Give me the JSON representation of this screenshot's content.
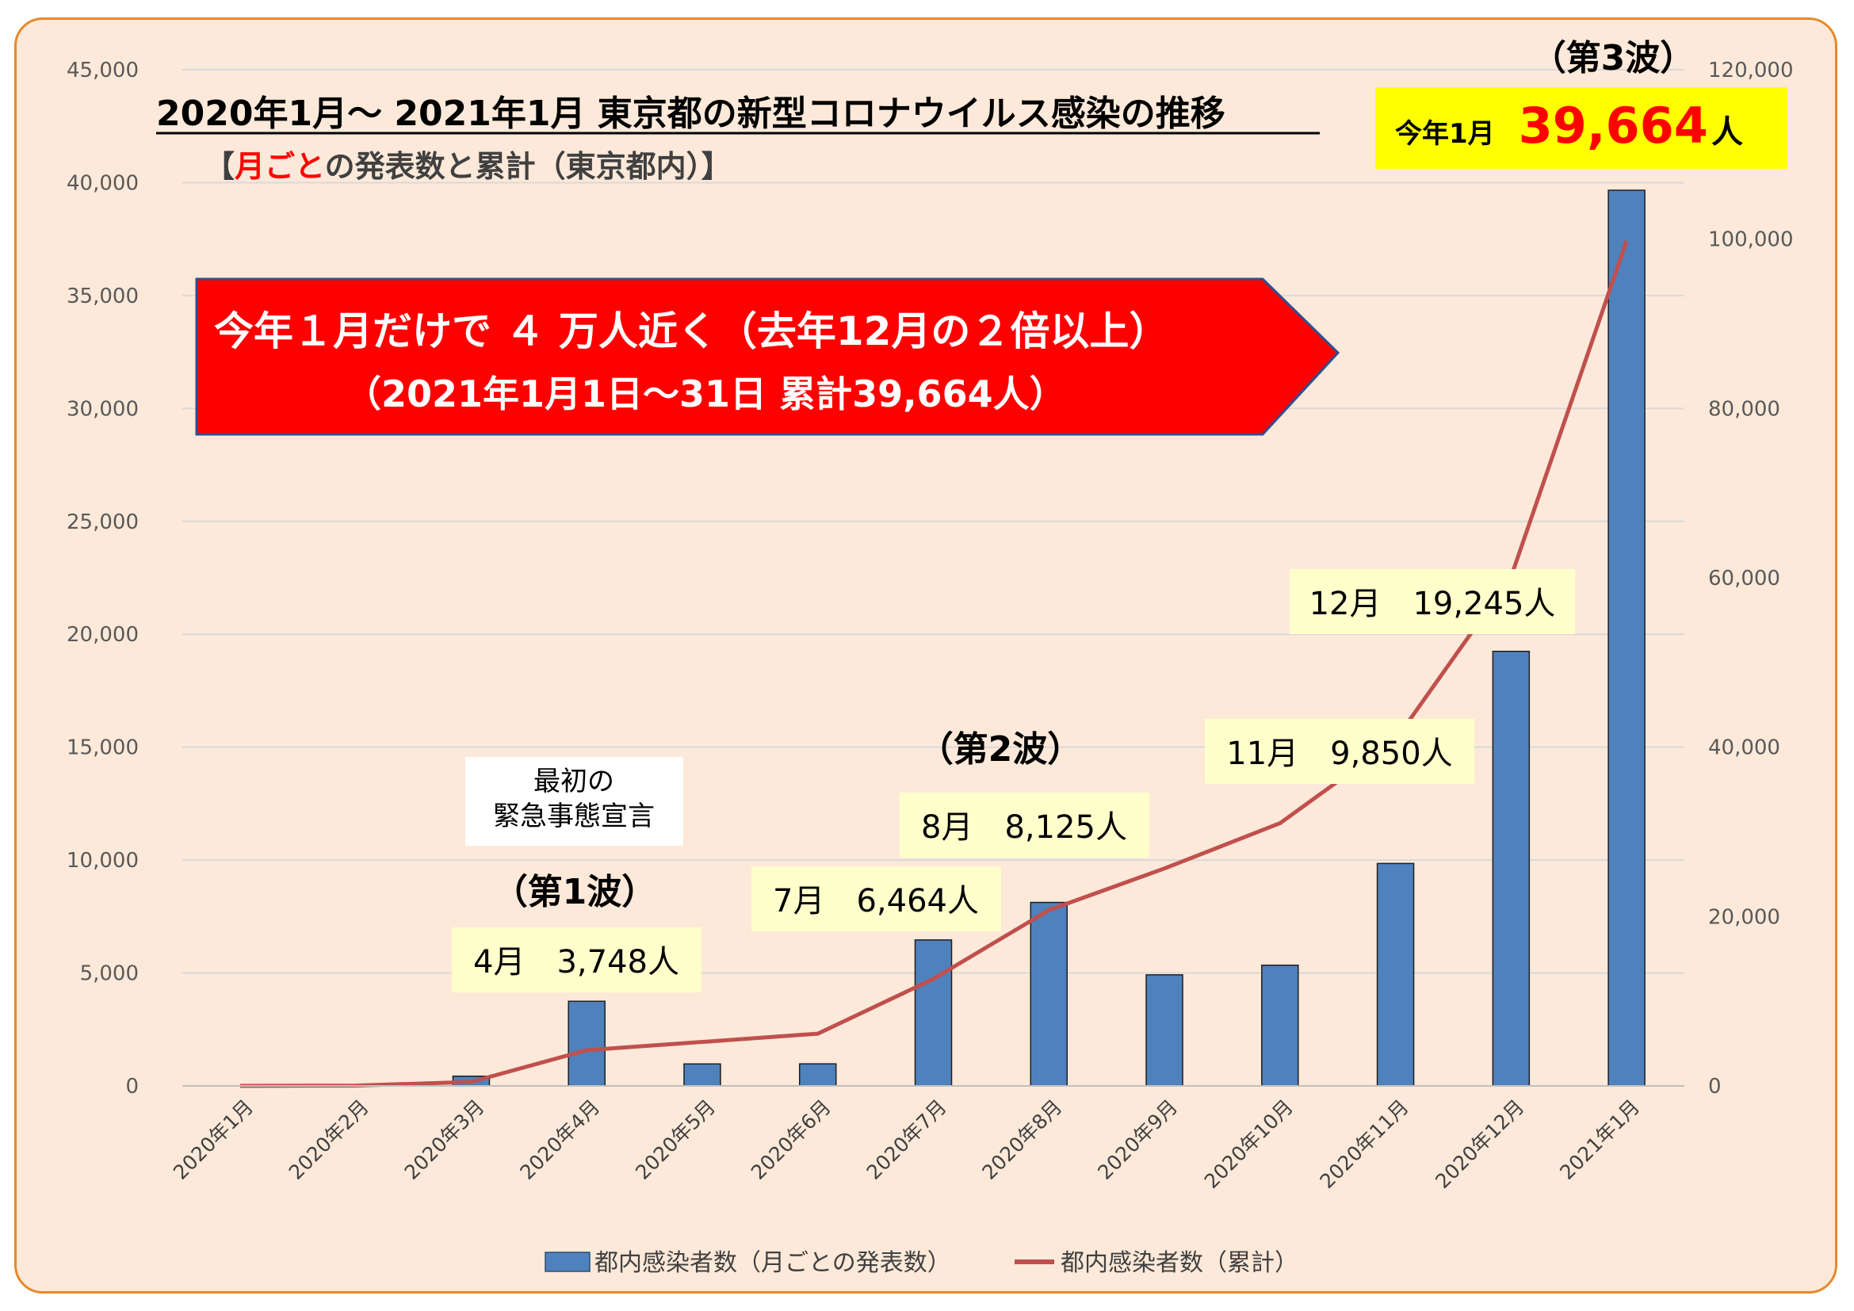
{
  "title": {
    "main": "2020年1月～ 2021年1月 東京都の新型コロナウイルス感染の推移",
    "sub_prefix": "【",
    "sub_highlight": "月ごと",
    "sub_rest": "の発表数と累計（東京都内）】"
  },
  "callout": {
    "line1": "今年１月だけで ４ 万人近く（去年12月の２倍以上）",
    "line2": "（2021年1月1日～31日 累計39,664人）",
    "color": "#ff0000"
  },
  "annotations": {
    "emergency_line1": "最初の",
    "emergency_line2": "緊急事態宣言",
    "wave1": "（第1波）",
    "wave2": "（第2波）",
    "wave3": "（第3波）",
    "april": "4月　3,748人",
    "july": "7月　6,464人",
    "august": "8月　8,125人",
    "november": "11月　9,850人",
    "december": "12月　19,245人",
    "january_label": "今年1月",
    "january_value": "39,664",
    "january_unit": "人"
  },
  "chart_data": {
    "type": "bar",
    "categories": [
      "2020年1月",
      "2020年2月",
      "2020年3月",
      "2020年4月",
      "2020年5月",
      "2020年6月",
      "2020年7月",
      "2020年8月",
      "2020年9月",
      "2020年10月",
      "2020年11月",
      "2020年12月",
      "2021年1月"
    ],
    "left_ticks": [
      "0",
      "5,000",
      "10,000",
      "15,000",
      "20,000",
      "25,000",
      "30,000",
      "35,000",
      "40,000",
      "45,000"
    ],
    "right_ticks": [
      "0",
      "20,000",
      "40,000",
      "60,000",
      "80,000",
      "100,000",
      "120,000"
    ],
    "ylim": [
      0,
      45000
    ],
    "y2lim": [
      0,
      120000
    ],
    "grid": true,
    "legend_position": "bottom",
    "series": [
      {
        "name": "都内感染者数（月ごとの発表数）",
        "type": "bar",
        "axis": "left",
        "color": "#4f81bd",
        "values": [
          2,
          37,
          430,
          3748,
          973,
          977,
          6464,
          8125,
          4919,
          5345,
          9850,
          19245,
          39664
        ]
      },
      {
        "name": "都内感染者数（累計）",
        "type": "line",
        "axis": "right",
        "color": "#c0504d",
        "values": [
          2,
          39,
          469,
          4217,
          5190,
          6167,
          12631,
          20756,
          25675,
          31020,
          40870,
          60115,
          99779
        ]
      }
    ]
  }
}
